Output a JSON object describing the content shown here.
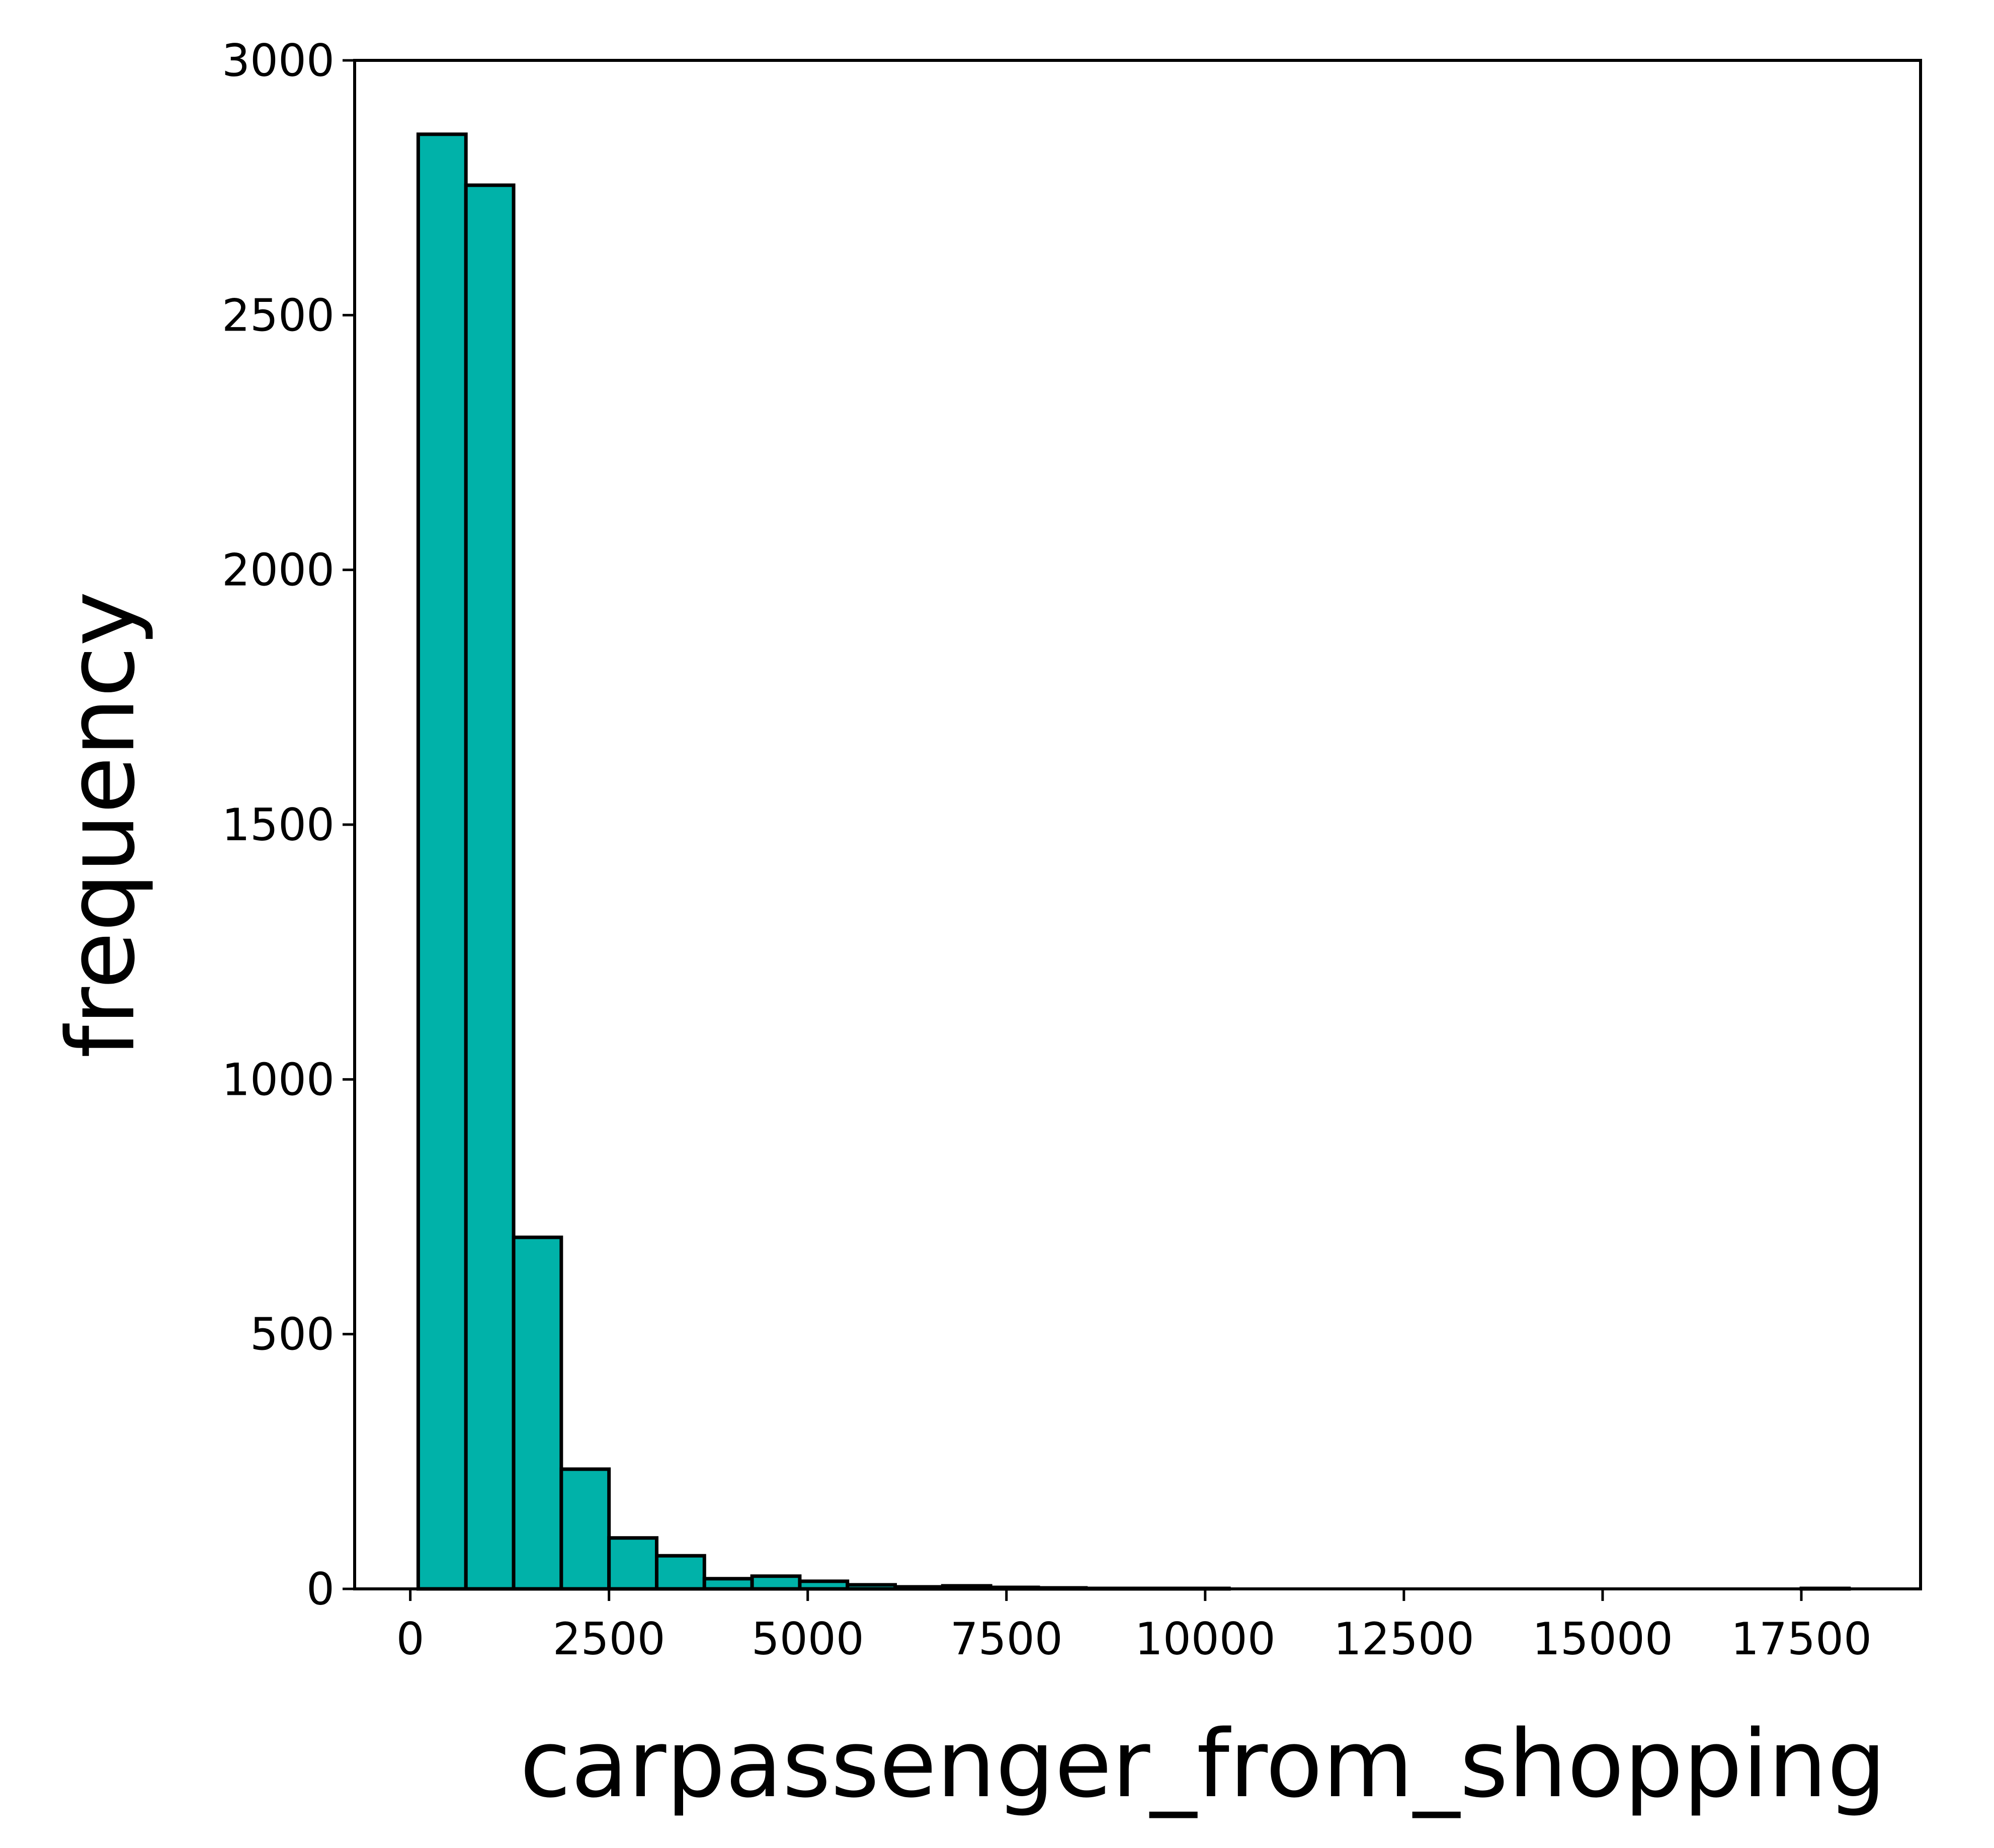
{
  "chart_data": {
    "type": "bar",
    "title": "",
    "xlabel": "carpassenger_from_shopping",
    "ylabel": "frequency",
    "xlim": [
      -700,
      19000
    ],
    "ylim": [
      0,
      3000
    ],
    "xticks": [
      0,
      2500,
      5000,
      7500,
      10000,
      12500,
      15000,
      17500
    ],
    "xtick_labels": [
      "0",
      "2500",
      "5000",
      "7500",
      "10000",
      "12500",
      "15000",
      "17500"
    ],
    "yticks": [
      0,
      500,
      1000,
      1500,
      2000,
      2500,
      3000
    ],
    "ytick_labels": [
      "0",
      "500",
      "1000",
      "1500",
      "2000",
      "2500",
      "3000"
    ],
    "grid": false,
    "bar_color": "#00b2a9",
    "edge_color": "#000000",
    "bins": [
      {
        "x0": 100,
        "x1": 700,
        "count": 2855
      },
      {
        "x0": 700,
        "x1": 1300,
        "count": 2755
      },
      {
        "x0": 1300,
        "x1": 1900,
        "count": 690
      },
      {
        "x0": 1900,
        "x1": 2500,
        "count": 235
      },
      {
        "x0": 2500,
        "x1": 3100,
        "count": 100
      },
      {
        "x0": 3100,
        "x1": 3700,
        "count": 65
      },
      {
        "x0": 3700,
        "x1": 4300,
        "count": 20
      },
      {
        "x0": 4300,
        "x1": 4900,
        "count": 25
      },
      {
        "x0": 4900,
        "x1": 5500,
        "count": 15
      },
      {
        "x0": 5500,
        "x1": 6100,
        "count": 8
      },
      {
        "x0": 6100,
        "x1": 6700,
        "count": 4
      },
      {
        "x0": 6700,
        "x1": 7300,
        "count": 6
      },
      {
        "x0": 7300,
        "x1": 7900,
        "count": 3
      },
      {
        "x0": 7900,
        "x1": 8500,
        "count": 2
      },
      {
        "x0": 8500,
        "x1": 9100,
        "count": 1
      },
      {
        "x0": 9100,
        "x1": 9700,
        "count": 1
      },
      {
        "x0": 9700,
        "x1": 10300,
        "count": 1
      },
      {
        "x0": 10300,
        "x1": 10900,
        "count": 0
      },
      {
        "x0": 10900,
        "x1": 11500,
        "count": 0
      },
      {
        "x0": 11500,
        "x1": 12100,
        "count": 0
      },
      {
        "x0": 12100,
        "x1": 12700,
        "count": 0
      },
      {
        "x0": 12700,
        "x1": 13300,
        "count": 0
      },
      {
        "x0": 13300,
        "x1": 13900,
        "count": 0
      },
      {
        "x0": 13900,
        "x1": 14500,
        "count": 0
      },
      {
        "x0": 14500,
        "x1": 15100,
        "count": 0
      },
      {
        "x0": 15100,
        "x1": 15700,
        "count": 0
      },
      {
        "x0": 15700,
        "x1": 16300,
        "count": 0
      },
      {
        "x0": 16300,
        "x1": 16900,
        "count": 0
      },
      {
        "x0": 16900,
        "x1": 17500,
        "count": 0
      },
      {
        "x0": 17500,
        "x1": 18100,
        "count": 1
      }
    ]
  }
}
